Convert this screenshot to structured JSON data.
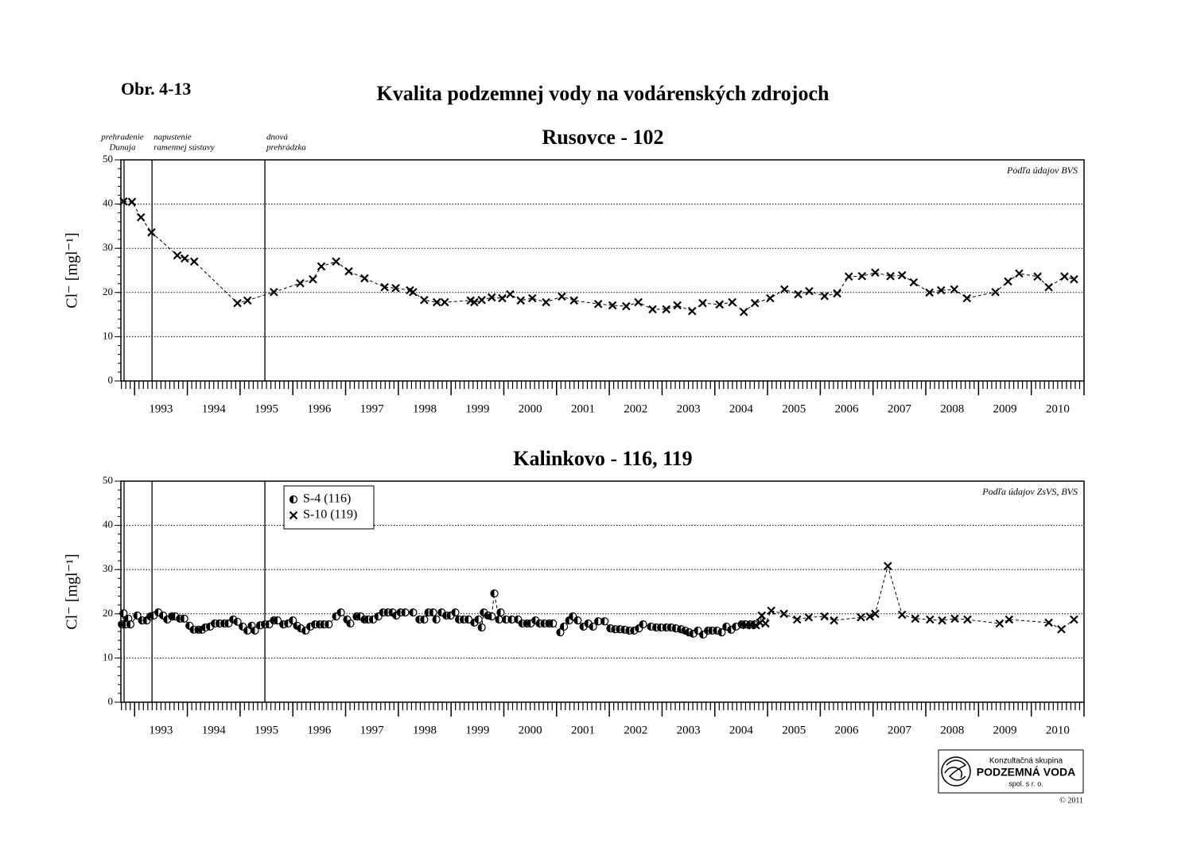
{
  "header": {
    "figure": "Obr. 4-13",
    "title": "Kvalita podzemnej vody na vodárenských zdrojoch"
  },
  "chart_data": [
    {
      "type": "line",
      "title": "Rusovce - 102",
      "note": "Podľa údajov BVS",
      "ylabel": "Cl⁻ [mgl⁻¹]",
      "xlim": [
        1992.74,
        2011.0
      ],
      "ylim": [
        0,
        50
      ],
      "yticks": [
        0,
        10,
        20,
        30,
        40,
        50
      ],
      "grid": true,
      "xticks": [
        {
          "value": 1993.5,
          "label": "1993"
        },
        {
          "value": 1994.5,
          "label": "1994"
        },
        {
          "value": 1995.5,
          "label": "1995"
        },
        {
          "value": 1996.5,
          "label": "1996"
        },
        {
          "value": 1997.5,
          "label": "1997"
        },
        {
          "value": 1998.5,
          "label": "1998"
        },
        {
          "value": 1999.5,
          "label": "1999"
        },
        {
          "value": 2000.5,
          "label": "2000"
        },
        {
          "value": 2001.5,
          "label": "2001"
        },
        {
          "value": 2002.5,
          "label": "2002"
        },
        {
          "value": 2003.5,
          "label": "2003"
        },
        {
          "value": 2004.5,
          "label": "2004"
        },
        {
          "value": 2005.5,
          "label": "2005"
        },
        {
          "value": 2006.5,
          "label": "2006"
        },
        {
          "value": 2007.5,
          "label": "2007"
        },
        {
          "value": 2008.5,
          "label": "2008"
        },
        {
          "value": 2009.5,
          "label": "2009"
        },
        {
          "value": 2010.5,
          "label": "2010"
        }
      ],
      "events": [
        {
          "x": 1992.8,
          "label": [
            "prehradenie",
            "Dunaja"
          ]
        },
        {
          "x": 1993.33,
          "label": [
            "napustenie",
            "ramennej sústavy"
          ]
        },
        {
          "x": 1995.47,
          "label": [
            "dnová",
            "prehrádzka"
          ]
        }
      ],
      "series": [
        {
          "marker": "cross",
          "color": "#000000",
          "x": [
            1992.79,
            1992.95,
            1993.12,
            1993.32,
            1993.81,
            1993.95,
            1994.13,
            1994.95,
            1995.14,
            1995.64,
            1996.14,
            1996.38,
            1996.54,
            1996.82,
            1997.06,
            1997.36,
            1997.74,
            1997.95,
            1998.22,
            1998.28,
            1998.49,
            1998.73,
            1998.88,
            1999.37,
            1999.44,
            1999.58,
            1999.77,
            1999.97,
            2000.12,
            2000.32,
            2000.54,
            2000.8,
            2001.1,
            2001.33,
            2001.79,
            2002.06,
            2002.32,
            2002.55,
            2002.82,
            2003.08,
            2003.29,
            2003.57,
            2003.77,
            2004.09,
            2004.33,
            2004.55,
            2004.76,
            2005.05,
            2005.32,
            2005.58,
            2005.79,
            2006.08,
            2006.32,
            2006.54,
            2006.79,
            2007.04,
            2007.33,
            2007.55,
            2007.77,
            2008.07,
            2008.29,
            2008.54,
            2008.78,
            2009.32,
            2009.56,
            2009.77,
            2010.12,
            2010.33,
            2010.63,
            2010.81
          ],
          "values": [
            40.6,
            40.5,
            37,
            33.6,
            28.4,
            27.7,
            27,
            17.6,
            18.2,
            20.1,
            22.1,
            23,
            25.9,
            27,
            24.8,
            23.2,
            21.2,
            21,
            20.5,
            20.1,
            18.3,
            17.8,
            17.8,
            18.2,
            17.8,
            18.3,
            18.9,
            18.7,
            19.6,
            18.2,
            18.7,
            17.8,
            19.1,
            18.2,
            17.4,
            17.1,
            16.9,
            17.8,
            16.2,
            16.2,
            17.1,
            15.8,
            17.6,
            17.3,
            17.8,
            15.6,
            17.6,
            18.7,
            20.7,
            19.6,
            20.3,
            19.2,
            19.8,
            23.6,
            23.7,
            24.5,
            23.7,
            23.9,
            22.3,
            20,
            20.5,
            20.7,
            18.7,
            20.1,
            22.5,
            24.3,
            23.6,
            21.2,
            23.6,
            23
          ]
        }
      ]
    },
    {
      "type": "line",
      "title": "Kalinkovo - 116, 119",
      "note": "Podľa údajov ZsVS, BVS",
      "ylabel": "Cl⁻ [mgl⁻¹]",
      "xlim": [
        1992.74,
        2011.0
      ],
      "ylim": [
        0,
        50
      ],
      "yticks": [
        0,
        10,
        20,
        30,
        40,
        50
      ],
      "grid": true,
      "legend": "upper left",
      "xticks": [
        {
          "value": 1993.5,
          "label": "1993"
        },
        {
          "value": 1994.5,
          "label": "1994"
        },
        {
          "value": 1995.5,
          "label": "1995"
        },
        {
          "value": 1996.5,
          "label": "1996"
        },
        {
          "value": 1997.5,
          "label": "1997"
        },
        {
          "value": 1998.5,
          "label": "1998"
        },
        {
          "value": 1999.5,
          "label": "1999"
        },
        {
          "value": 2000.5,
          "label": "2000"
        },
        {
          "value": 2001.5,
          "label": "2001"
        },
        {
          "value": 2002.5,
          "label": "2002"
        },
        {
          "value": 2003.5,
          "label": "2003"
        },
        {
          "value": 2004.5,
          "label": "2004"
        },
        {
          "value": 2005.5,
          "label": "2005"
        },
        {
          "value": 2006.5,
          "label": "2006"
        },
        {
          "value": 2007.5,
          "label": "2007"
        },
        {
          "value": 2008.5,
          "label": "2008"
        },
        {
          "value": 2009.5,
          "label": "2009"
        },
        {
          "value": 2010.5,
          "label": "2010"
        }
      ],
      "series": [
        {
          "name": "S-4 (116)",
          "marker": "half-circle",
          "color": "#000000",
          "x": [
            1992.76,
            1992.79,
            1992.83,
            1992.88,
            1992.92,
            1993.05,
            1993.14,
            1993.23,
            1993.3,
            1993.36,
            1993.45,
            1993.54,
            1993.62,
            1993.71,
            1993.77,
            1993.86,
            1993.94,
            1994.04,
            1994.12,
            1994.21,
            1994.28,
            1994.34,
            1994.43,
            1994.52,
            1994.61,
            1994.7,
            1994.78,
            1994.87,
            1994.95,
            1995.05,
            1995.14,
            1995.22,
            1995.28,
            1995.38,
            1995.47,
            1995.55,
            1995.64,
            1995.71,
            1995.82,
            1995.91,
            1996.0,
            1996.08,
            1996.15,
            1996.24,
            1996.33,
            1996.42,
            1996.51,
            1996.59,
            1996.68,
            1996.82,
            1996.91,
            1997.03,
            1997.09,
            1997.21,
            1997.28,
            1997.36,
            1997.43,
            1997.52,
            1997.62,
            1997.71,
            1997.8,
            1997.89,
            1997.96,
            1998.04,
            1998.13,
            1998.28,
            1998.4,
            1998.49,
            1998.57,
            1998.66,
            1998.72,
            1998.82,
            1998.91,
            1998.99,
            1999.08,
            1999.15,
            1999.24,
            1999.33,
            1999.44,
            1999.52,
            1999.58,
            1999.62,
            1999.7,
            1999.77,
            1999.82,
            1999.91,
            1999.94,
            2000.04,
            2000.15,
            2000.27,
            2000.35,
            2000.44,
            2000.51,
            2000.6,
            2000.68,
            2000.77,
            2000.86,
            2000.93,
            2001.07,
            2001.14,
            2001.24,
            2001.31,
            2001.4,
            2001.51,
            2001.6,
            2001.69,
            2001.79,
            2001.91,
            2002.02,
            2002.11,
            2002.2,
            2002.29,
            2002.38,
            2002.47,
            2002.56,
            2002.64,
            2002.79,
            2002.89,
            2002.98,
            2003.08,
            2003.17,
            2003.26,
            2003.36,
            2003.44,
            2003.51,
            2003.59,
            2003.68,
            2003.78,
            2003.87,
            2003.95,
            2004.04,
            2004.13,
            2004.22,
            2004.31,
            2004.4,
            2004.51,
            2004.58,
            2004.67,
            2004.75
          ],
          "values": [
            17.6,
            20.1,
            17.6,
            18.9,
            17.6,
            19.6,
            18.5,
            18.5,
            19.4,
            19.6,
            20.3,
            19.6,
            18.7,
            19.4,
            19.4,
            18.9,
            18.9,
            17.3,
            16.4,
            16.4,
            16.4,
            16.9,
            17.1,
            17.8,
            17.8,
            17.8,
            17.8,
            18.7,
            18.2,
            17.1,
            16.2,
            17.3,
            16.2,
            17.4,
            17.6,
            17.6,
            18.5,
            18.5,
            17.6,
            17.8,
            18.5,
            17.3,
            16.7,
            16.2,
            17.1,
            17.6,
            17.6,
            17.6,
            17.6,
            19.4,
            20.3,
            18.7,
            17.8,
            19.4,
            19.4,
            18.7,
            18.7,
            18.7,
            19.4,
            20.3,
            20.3,
            20.3,
            19.6,
            20.3,
            20.3,
            20.3,
            18.7,
            18.7,
            20.3,
            20.3,
            18.7,
            20.3,
            19.6,
            19.6,
            20.3,
            18.7,
            18.7,
            18.7,
            18.0,
            18.7,
            16.9,
            20.3,
            19.6,
            19.4,
            24.6,
            18.7,
            20.3,
            18.7,
            18.7,
            18.7,
            17.8,
            17.8,
            17.8,
            18.5,
            17.8,
            17.8,
            17.8,
            17.8,
            15.8,
            17.1,
            18.5,
            19.4,
            18.5,
            17.1,
            17.8,
            17.1,
            18.3,
            18.3,
            16.7,
            16.5,
            16.5,
            16.4,
            16.2,
            16.2,
            16.7,
            17.6,
            17.1,
            16.9,
            16.9,
            16.9,
            16.9,
            16.7,
            16.5,
            16.2,
            15.8,
            15.5,
            16.2,
            15.3,
            16.2,
            16.2,
            16.2,
            15.8,
            17.1,
            16.4,
            17.1,
            17.6,
            17.6,
            17.6,
            17.6
          ]
        },
        {
          "name": "S-10 (119)",
          "marker": "cross",
          "color": "#000000",
          "x": [
            2004.6,
            2004.69,
            2004.78,
            2004.86,
            2004.89,
            2004.96,
            2005.07,
            2005.31,
            2005.56,
            2005.78,
            2006.08,
            2006.26,
            2006.77,
            2006.94,
            2007.04,
            2007.28,
            2007.55,
            2007.8,
            2008.08,
            2008.31,
            2008.55,
            2008.79,
            2009.4,
            2009.58,
            2010.33,
            2010.57,
            2010.81
          ],
          "values": [
            17.4,
            17.4,
            17.4,
            18.0,
            19.6,
            17.8,
            20.7,
            20.0,
            18.7,
            19.2,
            19.4,
            18.5,
            19.2,
            19.4,
            20.0,
            30.8,
            19.8,
            18.9,
            18.7,
            18.5,
            18.9,
            18.7,
            17.8,
            18.7,
            18.0,
            16.5,
            18.7
          ]
        }
      ]
    }
  ],
  "footer": {
    "logo_top": "Konzultačná skupina",
    "logo_name": "PODZEMNÁ VODA",
    "logo_bottom": "spol. s r. o.",
    "copyright": "© 2011"
  }
}
